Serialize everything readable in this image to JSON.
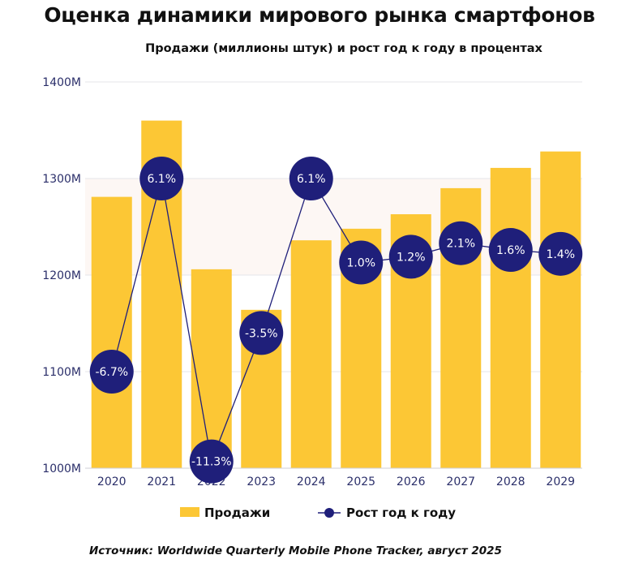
{
  "chart_data": {
    "type": "bar",
    "title": "Оценка динамики мирового рынка смартфонов",
    "subtitle": "Продажи (миллионы штук) и рост год к году в процентах",
    "categories": [
      "2020",
      "2021",
      "2022",
      "2023",
      "2024",
      "2025",
      "2026",
      "2027",
      "2028",
      "2029"
    ],
    "ylim": [
      1000,
      1400
    ],
    "yticks": [
      {
        "value": 1000,
        "label": "1000M"
      },
      {
        "value": 1100,
        "label": "1100M"
      },
      {
        "value": 1200,
        "label": "1200M"
      },
      {
        "value": 1300,
        "label": "1300M"
      },
      {
        "value": 1400,
        "label": "1400M"
      }
    ],
    "grid": true,
    "legend_position": "bottom-center",
    "series": [
      {
        "name": "Продажи",
        "kind": "bar",
        "color": "#fcc735",
        "values": [
          1281,
          1360,
          1206,
          1164,
          1236,
          1248,
          1263,
          1290,
          1311,
          1328
        ]
      },
      {
        "name": "Рост год к году",
        "kind": "line",
        "color": "#1f1f7a",
        "values": [
          -6.7,
          6.1,
          -11.3,
          -3.5,
          6.1,
          1.0,
          1.2,
          2.1,
          1.6,
          1.4
        ],
        "labels": [
          "-6.7%",
          "6.1%",
          "-11.3%",
          "-3.5%",
          "6.1%",
          "1.0%",
          "1.2%",
          "2.1%",
          "1.6%",
          "1.4%"
        ],
        "display_on_left_axis": [
          1100,
          1300,
          1007,
          1140,
          1300,
          1213,
          1219,
          1233,
          1226,
          1222
        ]
      }
    ],
    "source": "Источник: Worldwide Quarterly Mobile Phone Tracker, август 2025"
  }
}
